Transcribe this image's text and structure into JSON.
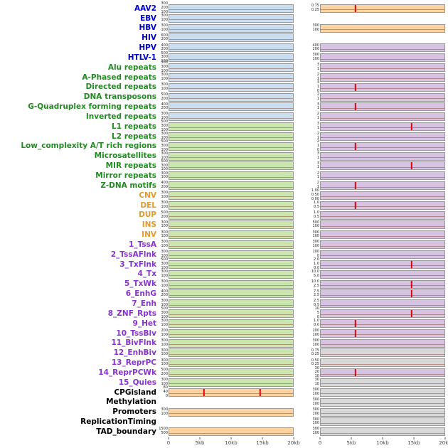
{
  "chart_data": {
    "type": "area",
    "title": "",
    "description": "Small-multiple density strip panels per genomic feature, two columns sharing x-axis 0-20kb; red vertical lines mark peaks",
    "columns": 2,
    "x_axis": {
      "ticks": [
        "0",
        "5kb",
        "10kb",
        "15kb",
        "20kb"
      ],
      "range_kb": [
        0,
        20
      ]
    },
    "palette": {
      "label": {
        "virus": "#0000cc",
        "repeat": "#228b22",
        "sv": "#e39b2d",
        "state": "#8833cc",
        "other": "#000000"
      },
      "strip": {
        "blue": "#c9ddee",
        "green": "#cbe5ae",
        "orange": "#fcd2a0",
        "purple": "#d6c3e2",
        "gray": "#d8d8d8"
      },
      "spike": "#e8000b"
    },
    "rows": [
      {
        "label": "AAV2",
        "group": "virus",
        "left": {
          "bg": "blue",
          "peaks_kb": [],
          "yticks": [
            "300",
            "200",
            "100"
          ]
        },
        "right": {
          "bg": "orange",
          "peaks_kb": [
            5.6
          ],
          "yticks": [
            "0.75",
            "0.25"
          ]
        }
      },
      {
        "label": "EBV",
        "group": "virus",
        "left": {
          "bg": "blue",
          "peaks_kb": [],
          "yticks": [
            "300",
            "100"
          ]
        },
        "right": null
      },
      {
        "label": "HBV",
        "group": "virus",
        "left": {
          "bg": "blue",
          "peaks_kb": [],
          "yticks": [
            "300",
            "100"
          ]
        },
        "right": {
          "bg": "orange",
          "peaks_kb": [],
          "yticks": [
            "300",
            "100"
          ]
        }
      },
      {
        "label": "HIV",
        "group": "virus",
        "left": {
          "bg": "blue",
          "peaks_kb": [],
          "yticks": [
            "600",
            "200"
          ]
        },
        "right": null
      },
      {
        "label": "HPV",
        "group": "virus",
        "left": {
          "bg": "blue",
          "peaks_kb": [],
          "yticks": [
            "400",
            "200"
          ]
        },
        "right": {
          "bg": "purple",
          "peaks_kb": [],
          "yticks": [
            "400",
            "200"
          ]
        }
      },
      {
        "label": "HTLV-1",
        "group": "virus",
        "left": {
          "bg": "blue",
          "peaks_kb": [],
          "yticks": [
            "500",
            "300",
            "100"
          ]
        },
        "right": {
          "bg": "purple",
          "peaks_kb": [],
          "yticks": [
            "300",
            "100"
          ]
        }
      },
      {
        "label": "Alu repeats",
        "group": "repeat",
        "left": {
          "bg": "blue",
          "peaks_kb": [],
          "yticks": [
            "500",
            "300",
            "100"
          ]
        },
        "right": {
          "bg": "purple",
          "peaks_kb": [],
          "yticks": [
            "3",
            "1"
          ]
        }
      },
      {
        "label": "A-Phased repeats",
        "group": "repeat",
        "left": {
          "bg": "blue",
          "peaks_kb": [],
          "yticks": [
            "300",
            "100"
          ]
        },
        "right": {
          "bg": "purple",
          "peaks_kb": [],
          "yticks": [
            "2",
            "1"
          ]
        }
      },
      {
        "label": "Directed repeats",
        "group": "repeat",
        "left": {
          "bg": "blue",
          "peaks_kb": [],
          "yticks": [
            "300",
            "100"
          ]
        },
        "right": {
          "bg": "purple",
          "peaks_kb": [
            5.6
          ],
          "yticks": [
            "3",
            "1",
            "0"
          ]
        }
      },
      {
        "label": "DNA transposons",
        "group": "repeat",
        "left": {
          "bg": "blue",
          "peaks_kb": [],
          "yticks": [
            "500",
            "200"
          ]
        },
        "right": {
          "bg": "purple",
          "peaks_kb": [],
          "yticks": [
            "2",
            "1"
          ]
        }
      },
      {
        "label": "G-Quadruplex forming repeats",
        "group": "repeat",
        "left": {
          "bg": "blue",
          "peaks_kb": [],
          "yticks": [
            "400",
            "200"
          ]
        },
        "right": {
          "bg": "purple",
          "peaks_kb": [
            5.6
          ],
          "yticks": [
            "3",
            "1"
          ]
        }
      },
      {
        "label": "Inverted repeats",
        "group": "repeat",
        "left": {
          "bg": "blue",
          "peaks_kb": [],
          "yticks": [
            "300",
            "100"
          ]
        },
        "right": {
          "bg": "purple",
          "peaks_kb": [],
          "yticks": [
            "2",
            "1"
          ]
        }
      },
      {
        "label": "L1 repeats",
        "group": "repeat",
        "left": {
          "bg": "green",
          "peaks_kb": [],
          "yticks": [
            "500",
            "300",
            "100"
          ]
        },
        "right": {
          "bg": "purple",
          "peaks_kb": [
            14.7
          ],
          "yticks": [
            "3",
            "1"
          ]
        }
      },
      {
        "label": "L2 repeats",
        "group": "repeat",
        "left": {
          "bg": "green",
          "peaks_kb": [],
          "yticks": [
            "300",
            "100"
          ]
        },
        "right": {
          "bg": "purple",
          "peaks_kb": [],
          "yticks": [
            "2",
            "1"
          ]
        }
      },
      {
        "label": "Low_complexity A/T rich regions",
        "group": "repeat",
        "left": {
          "bg": "green",
          "peaks_kb": [],
          "yticks": [
            "500",
            "300",
            "100"
          ]
        },
        "right": {
          "bg": "purple",
          "peaks_kb": [
            5.6
          ],
          "yticks": [
            "2",
            "1",
            "0"
          ]
        }
      },
      {
        "label": "Microsatellites",
        "group": "repeat",
        "left": {
          "bg": "green",
          "peaks_kb": [],
          "yticks": [
            "300",
            "100"
          ]
        },
        "right": {
          "bg": "purple",
          "peaks_kb": [],
          "yticks": [
            "3",
            "1"
          ]
        }
      },
      {
        "label": "MIR repeats",
        "group": "repeat",
        "left": {
          "bg": "green",
          "peaks_kb": [],
          "yticks": [
            "500",
            "300",
            "100"
          ]
        },
        "right": {
          "bg": "purple",
          "peaks_kb": [
            14.7
          ],
          "yticks": [
            "3",
            "1"
          ]
        }
      },
      {
        "label": "Mirror repeats",
        "group": "repeat",
        "left": {
          "bg": "green",
          "peaks_kb": [],
          "yticks": [
            "300",
            "100"
          ]
        },
        "right": {
          "bg": "purple",
          "peaks_kb": [],
          "yticks": [
            "2",
            "1"
          ]
        }
      },
      {
        "label": "Z-DNA motifs",
        "group": "repeat",
        "left": {
          "bg": "green",
          "peaks_kb": [],
          "yticks": [
            "400",
            "200"
          ]
        },
        "right": {
          "bg": "purple",
          "peaks_kb": [
            5.6
          ],
          "yticks": [
            "2",
            "1"
          ]
        }
      },
      {
        "label": "CNV",
        "group": "sv",
        "left": {
          "bg": "green",
          "peaks_kb": [],
          "yticks": [
            "300",
            "100"
          ]
        },
        "right": {
          "bg": "purple",
          "peaks_kb": [],
          "yticks": [
            "1.00",
            "0.50",
            "0.00"
          ]
        }
      },
      {
        "label": "DEL",
        "group": "sv",
        "left": {
          "bg": "green",
          "peaks_kb": [],
          "yticks": [
            "300",
            "100"
          ]
        },
        "right": {
          "bg": "purple",
          "peaks_kb": [
            5.6
          ],
          "yticks": [
            "1.0",
            "0.5"
          ]
        }
      },
      {
        "label": "DUP",
        "group": "sv",
        "left": {
          "bg": "green",
          "peaks_kb": [],
          "yticks": [
            "500",
            "200"
          ]
        },
        "right": {
          "bg": "purple",
          "peaks_kb": [],
          "yticks": [
            "1.0",
            "0.5"
          ]
        }
      },
      {
        "label": "INS",
        "group": "sv",
        "left": {
          "bg": "green",
          "peaks_kb": [],
          "yticks": [
            "300",
            "100"
          ]
        },
        "right": {
          "bg": "purple",
          "peaks_kb": [],
          "yticks": [
            "500",
            "100"
          ]
        }
      },
      {
        "label": "INV",
        "group": "sv",
        "left": {
          "bg": "green",
          "peaks_kb": [],
          "yticks": [
            "300",
            "100"
          ]
        },
        "right": {
          "bg": "purple",
          "peaks_kb": [],
          "yticks": [
            "300",
            "100"
          ]
        }
      },
      {
        "label": "1_TssA",
        "group": "state",
        "left": {
          "bg": "green",
          "peaks_kb": [],
          "yticks": [
            "300",
            "100"
          ]
        },
        "right": {
          "bg": "purple",
          "peaks_kb": [],
          "yticks": [
            "300",
            "100"
          ]
        }
      },
      {
        "label": "2_TssAFlnk",
        "group": "state",
        "left": {
          "bg": "green",
          "peaks_kb": [],
          "yticks": [
            "300",
            "100"
          ]
        },
        "right": {
          "bg": "purple",
          "peaks_kb": [],
          "yticks": [
            "100",
            "0"
          ]
        }
      },
      {
        "label": "3_TxFlnk",
        "group": "state",
        "left": {
          "bg": "green",
          "peaks_kb": [],
          "yticks": [
            "500",
            "300",
            "100"
          ]
        },
        "right": {
          "bg": "purple",
          "peaks_kb": [
            14.7
          ],
          "yticks": [
            "2.0",
            "1.0",
            "0.0"
          ]
        }
      },
      {
        "label": "4_Tx",
        "group": "state",
        "left": {
          "bg": "green",
          "peaks_kb": [],
          "yticks": [
            "300",
            "100"
          ]
        },
        "right": {
          "bg": "purple",
          "peaks_kb": [],
          "yticks": [
            "10.0",
            "5.0"
          ]
        }
      },
      {
        "label": "5_TxWk",
        "group": "state",
        "left": {
          "bg": "green",
          "peaks_kb": [],
          "yticks": [
            "300",
            "100"
          ]
        },
        "right": {
          "bg": "purple",
          "peaks_kb": [
            14.7
          ],
          "yticks": [
            "10.0",
            "2.5"
          ]
        }
      },
      {
        "label": "6_EnhG",
        "group": "state",
        "left": {
          "bg": "green",
          "peaks_kb": [],
          "yticks": [
            "400",
            "200"
          ]
        },
        "right": {
          "bg": "purple",
          "peaks_kb": [
            14.7
          ],
          "yticks": [
            "7.5",
            "2.5"
          ]
        }
      },
      {
        "label": "7_Enh",
        "group": "state",
        "left": {
          "bg": "green",
          "peaks_kb": [],
          "yticks": [
            "300",
            "100"
          ]
        },
        "right": {
          "bg": "purple",
          "peaks_kb": [],
          "yticks": [
            "2.5",
            "0.5"
          ]
        }
      },
      {
        "label": "8_ZNF_Rpts",
        "group": "state",
        "left": {
          "bg": "green",
          "peaks_kb": [],
          "yticks": [
            "500",
            "300",
            "100"
          ]
        },
        "right": {
          "bg": "purple",
          "peaks_kb": [
            14.7
          ],
          "yticks": [
            "10",
            "5",
            "0"
          ]
        }
      },
      {
        "label": "9_Het",
        "group": "state",
        "left": {
          "bg": "green",
          "peaks_kb": [],
          "yticks": [
            "300",
            "100"
          ]
        },
        "right": {
          "bg": "purple",
          "peaks_kb": [
            5.6
          ],
          "yticks": [
            "1.0",
            "0.0"
          ]
        }
      },
      {
        "label": "10_TssBiv",
        "group": "state",
        "left": {
          "bg": "green",
          "peaks_kb": [],
          "yticks": [
            "200",
            "100"
          ]
        },
        "right": {
          "bg": "purple",
          "peaks_kb": [
            5.6
          ],
          "yticks": [
            "200",
            "100"
          ]
        }
      },
      {
        "label": "11_BivFlnk",
        "group": "state",
        "left": {
          "bg": "green",
          "peaks_kb": [],
          "yticks": [
            "300",
            "100"
          ]
        },
        "right": {
          "bg": "purple",
          "peaks_kb": [],
          "yticks": [
            "300",
            "100"
          ]
        }
      },
      {
        "label": "12_EnhBiv",
        "group": "state",
        "left": {
          "bg": "green",
          "peaks_kb": [],
          "yticks": [
            "300",
            "100"
          ]
        },
        "right": {
          "bg": "gray",
          "peaks_kb": [],
          "yticks": [
            "0.75",
            "0.25"
          ]
        }
      },
      {
        "label": "13_ReprPC",
        "group": "state",
        "left": {
          "bg": "green",
          "peaks_kb": [],
          "yticks": [
            "300",
            "100"
          ]
        },
        "right": {
          "bg": "gray",
          "peaks_kb": [],
          "yticks": [
            "0.50",
            "0.25"
          ]
        }
      },
      {
        "label": "14_ReprPCWk",
        "group": "state",
        "left": {
          "bg": "green",
          "peaks_kb": [],
          "yticks": [
            "500",
            "200"
          ]
        },
        "right": {
          "bg": "purple",
          "peaks_kb": [
            5.6
          ],
          "yticks": [
            "30",
            "20",
            "10"
          ]
        }
      },
      {
        "label": "15_Quies",
        "group": "state",
        "left": {
          "bg": "green",
          "peaks_kb": [],
          "yticks": [
            "300",
            "100"
          ]
        },
        "right": {
          "bg": "gray",
          "peaks_kb": [],
          "yticks": [
            "30",
            "10"
          ]
        }
      },
      {
        "label": "CPGisland",
        "group": "other",
        "left": {
          "bg": "orange",
          "peaks_kb": [
            5.6,
            14.7
          ],
          "yticks": [
            "80",
            "40",
            "0"
          ]
        },
        "right": {
          "bg": "gray",
          "peaks_kb": [],
          "yticks": [
            "300",
            "100"
          ]
        }
      },
      {
        "label": "Methylation",
        "group": "other",
        "left": null,
        "right": {
          "bg": "gray",
          "peaks_kb": [],
          "yticks": [
            "300",
            "100"
          ]
        }
      },
      {
        "label": "Promoters",
        "group": "other",
        "left": {
          "bg": "orange",
          "peaks_kb": [],
          "yticks": [
            "300",
            "100"
          ]
        },
        "right": {
          "bg": "gray",
          "peaks_kb": [],
          "yticks": [
            "300",
            "100"
          ]
        }
      },
      {
        "label": "ReplicationTiming",
        "group": "other",
        "left": null,
        "right": {
          "bg": "gray",
          "peaks_kb": [],
          "yticks": [
            "300",
            "100"
          ]
        }
      },
      {
        "label": "TAD_boundary",
        "group": "other",
        "left": {
          "bg": "orange",
          "peaks_kb": [],
          "yticks": [
            "1500",
            "500"
          ]
        },
        "right": {
          "bg": "gray",
          "peaks_kb": [],
          "yticks": [
            "300",
            "100"
          ]
        }
      }
    ]
  }
}
